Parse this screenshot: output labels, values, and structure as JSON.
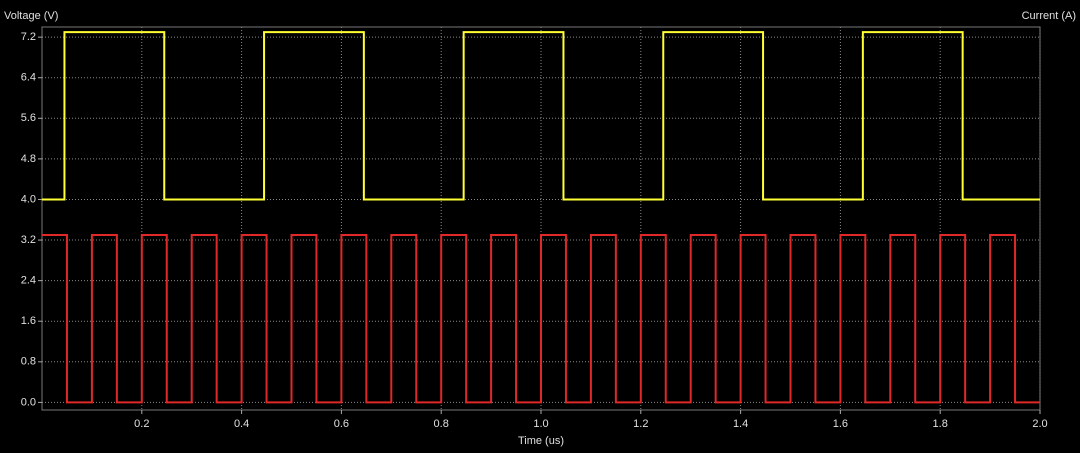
{
  "chart_data": {
    "type": "line",
    "ylabel": "Voltage (V)",
    "y2label": "Current (A)",
    "xlabel": "Time (us)",
    "xlim": [
      0,
      2.0
    ],
    "xticks": [
      0.2,
      0.4,
      0.6,
      0.8,
      {
        "value": 1.0,
        "label": "1.0"
      },
      1.2,
      1.4,
      1.6,
      1.8,
      {
        "value": 2.0,
        "label": "2.0"
      }
    ],
    "ylim": [
      -0.15,
      7.4
    ],
    "yticks": [
      {
        "value": 0,
        "label": "0.0"
      },
      0.8,
      1.6,
      2.4,
      3.2,
      {
        "value": 4.0,
        "label": "4.0"
      },
      4.8,
      5.6,
      6.4,
      7.2
    ],
    "grid": true,
    "series": [
      {
        "color": "#ffff33",
        "x": [
          0,
          0.045,
          0.045,
          0.245,
          0.245,
          0.445,
          0.445,
          0.645,
          0.645,
          0.845,
          0.845,
          1.045,
          1.045,
          1.245,
          1.245,
          1.445,
          1.445,
          1.645,
          1.645,
          1.845,
          1.845,
          2.0
        ],
        "values": [
          4,
          4,
          7.3,
          7.3,
          4,
          4,
          7.3,
          7.3,
          4,
          4,
          7.3,
          7.3,
          4,
          4,
          7.3,
          7.3,
          4,
          4,
          7.3,
          7.3,
          4,
          4
        ]
      },
      {
        "color": "#e02828",
        "x": [
          0,
          0.05,
          0.05,
          0.1,
          0.1,
          0.15,
          0.15,
          0.2,
          0.2,
          0.25,
          0.25,
          0.3,
          0.3,
          0.35,
          0.35,
          0.4,
          0.4,
          0.45,
          0.45,
          0.5,
          0.5,
          0.55,
          0.55,
          0.6,
          0.6,
          0.65,
          0.65,
          0.7,
          0.7,
          0.75,
          0.75,
          0.8,
          0.8,
          0.85,
          0.85,
          0.9,
          0.9,
          0.95,
          0.95,
          1.0,
          1.0,
          1.05,
          1.05,
          1.1,
          1.1,
          1.15,
          1.15,
          1.2,
          1.2,
          1.25,
          1.25,
          1.3,
          1.3,
          1.35,
          1.35,
          1.4,
          1.4,
          1.45,
          1.45,
          1.5,
          1.5,
          1.55,
          1.55,
          1.6,
          1.6,
          1.65,
          1.65,
          1.7,
          1.7,
          1.75,
          1.75,
          1.8,
          1.8,
          1.85,
          1.85,
          1.9,
          1.9,
          1.95,
          1.95,
          2.0
        ],
        "values": [
          3.3,
          3.3,
          0,
          0,
          3.3,
          3.3,
          0,
          0,
          3.3,
          3.3,
          0,
          0,
          3.3,
          3.3,
          0,
          0,
          3.3,
          3.3,
          0,
          0,
          3.3,
          3.3,
          0,
          0,
          3.3,
          3.3,
          0,
          0,
          3.3,
          3.3,
          0,
          0,
          3.3,
          3.3,
          0,
          0,
          3.3,
          3.3,
          0,
          0,
          3.3,
          3.3,
          0,
          0,
          3.3,
          3.3,
          0,
          0,
          3.3,
          3.3,
          0,
          0,
          3.3,
          3.3,
          0,
          0,
          3.3,
          3.3,
          0,
          0,
          3.3,
          3.3,
          0,
          0,
          3.3,
          3.3,
          0,
          0,
          3.3,
          3.3,
          0,
          0,
          3.3,
          3.3,
          0,
          0,
          3.3,
          3.3,
          0,
          0
        ]
      }
    ]
  }
}
